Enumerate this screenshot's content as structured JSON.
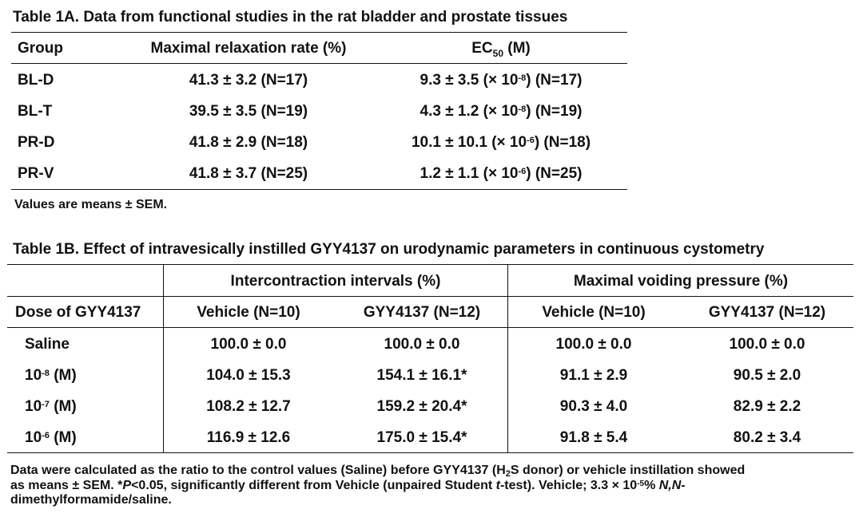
{
  "table1a": {
    "title": "Table 1A. Data from functional studies in the rat bladder and prostate tissues",
    "headers": {
      "group": "Group",
      "maxrel": "Maximal relaxation rate (%)",
      "ec50_prefix": "EC",
      "ec50_sub": "50",
      "ec50_suffix": " (M)"
    },
    "rows": [
      {
        "group": "BL-D",
        "maxrel": "41.3 ± 3.2 (N=17)",
        "ec_a": "9.3 ± 3.5 (× 10",
        "ec_exp": "-8",
        "ec_b": ") (N=17)"
      },
      {
        "group": "BL-T",
        "maxrel": "39.5 ± 3.5 (N=19)",
        "ec_a": "4.3 ± 1.2 (× 10",
        "ec_exp": "-8",
        "ec_b": ") (N=19)"
      },
      {
        "group": "PR-D",
        "maxrel": "41.8 ± 2.9 (N=18)",
        "ec_a": "10.1 ± 10.1 (× 10",
        "ec_exp": "-6",
        "ec_b": ") (N=18)"
      },
      {
        "group": "PR-V",
        "maxrel": "41.8 ± 3.7 (N=25)",
        "ec_a": "1.2 ± 1.1 (× 10",
        "ec_exp": "-6",
        "ec_b": ") (N=25)"
      }
    ],
    "note": "Values are means ± SEM."
  },
  "table1b": {
    "title": "Table 1B. Effect of intravesically instilled GYY4137 on urodynamic parameters in continuous cystometry",
    "group_headers": {
      "intervals": "Intercontraction intervals (%)",
      "pressure": "Maximal voiding pressure (%)"
    },
    "headers": {
      "dose": "Dose of GYY4137",
      "veh1": "Vehicle (N=10)",
      "gyy1": "GYY4137 (N=12)",
      "veh2": "Vehicle (N=10)",
      "gyy2": "GYY4137 (N=12)"
    },
    "rows": [
      {
        "dose_a": "Saline",
        "dose_exp": "",
        "dose_b": "",
        "veh1": "100.0 ± 0.0",
        "gyy1": "100.0 ± 0.0",
        "veh2": "100.0 ± 0.0",
        "gyy2": "100.0 ± 0.0"
      },
      {
        "dose_a": "10",
        "dose_exp": "-8",
        "dose_b": " (M)",
        "veh1": "104.0 ± 15.3",
        "gyy1": "154.1 ± 16.1*",
        "veh2": "91.1 ± 2.9",
        "gyy2": "90.5 ± 2.0"
      },
      {
        "dose_a": "10",
        "dose_exp": "-7",
        "dose_b": " (M)",
        "veh1": "108.2 ± 12.7",
        "gyy1": "159.2 ± 20.4*",
        "veh2": "90.3 ± 4.0",
        "gyy2": "82.9 ± 2.2"
      },
      {
        "dose_a": "10",
        "dose_exp": "-6",
        "dose_b": " (M)",
        "veh1": "116.9 ± 12.6",
        "gyy1": "175.0 ± 15.4*",
        "veh2": "91.8 ± 5.4",
        "gyy2": "80.2 ± 3.4"
      }
    ],
    "note": {
      "l1a": "Data were calculated as the ratio to the control values (Saline) before GYY4137 (H",
      "l1sub": "2",
      "l1b": "S donor) or vehicle instillation showed",
      "l2a": "as means ± SEM.  *",
      "l2i1": "P",
      "l2b": "<0.05, significantly different from Vehicle (unpaired Student ",
      "l2i2": "t",
      "l2c": "-test).  Vehicle; 3.3 × 10",
      "l2sup": "-5",
      "l2d": "% ",
      "l2i3": "N,N-",
      "l3": "dimethylformamide/saline."
    }
  }
}
